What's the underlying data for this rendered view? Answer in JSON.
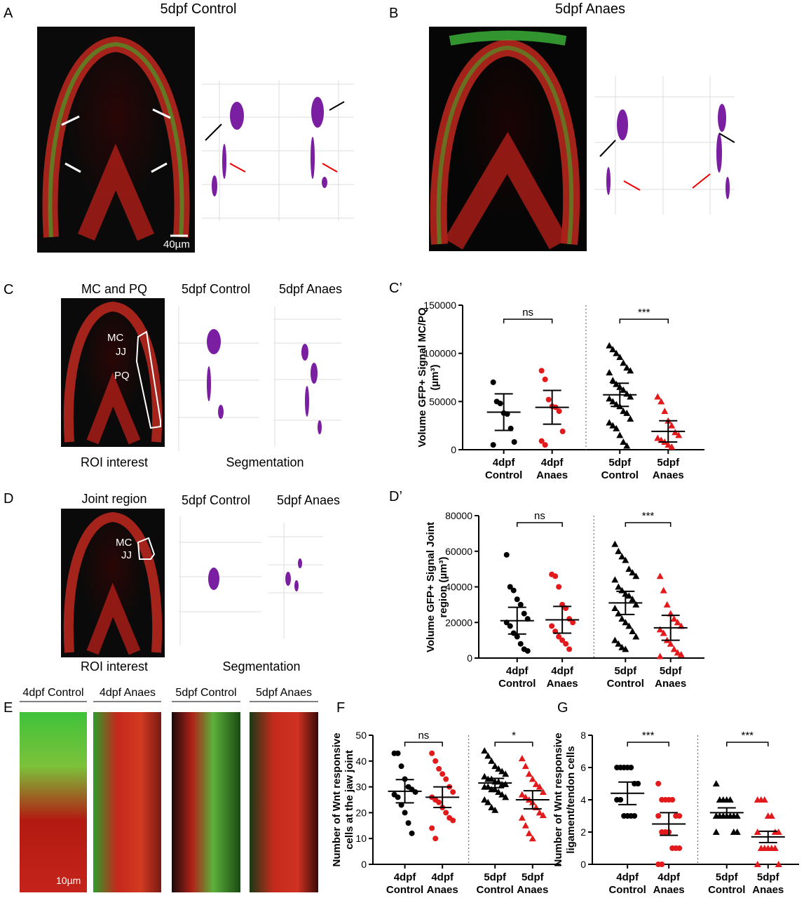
{
  "figure": {
    "A": {
      "label": "A",
      "title": "5dpf Control",
      "scale": "40µm"
    },
    "B": {
      "label": "B",
      "title": "5dpf Anaes"
    },
    "C": {
      "label": "C",
      "roi_title": "MC and PQ",
      "seg1": "5dpf Control",
      "seg2": "5dpf Anaes",
      "roi_caption": "ROI interest",
      "seg_caption": "Segmentation",
      "mc": "MC",
      "jj": "JJ",
      "pq": "PQ"
    },
    "D": {
      "label": "D",
      "roi_title": "Joint region",
      "seg1": "5dpf Control",
      "seg2": "5dpf Anaes",
      "roi_caption": "ROI interest",
      "seg_caption": "Segmentation",
      "mc": "MC",
      "jj": "JJ"
    },
    "E": {
      "label": "E",
      "headers": [
        "4dpf Control",
        "4dpf Anaes",
        "5dpf Control",
        "5dpf Anaes"
      ],
      "scale": "10µm"
    }
  },
  "chart_data": [
    {
      "type": "dotplot",
      "title": "C’",
      "y_label": "Volume GFP+ Signal MC/PQ (µm³)",
      "categories": [
        "4dpf Control",
        "4dpf Anaes",
        "5dpf Control",
        "5dpf Anaes"
      ],
      "colors": [
        "#000000",
        "#e31a1c",
        "#000000",
        "#e31a1c"
      ],
      "markers": [
        "circle",
        "circle",
        "triangle",
        "triangle"
      ],
      "points": [
        [
          70000,
          50000,
          48000,
          38000,
          37000,
          22000,
          8000,
          5000
        ],
        [
          82000,
          73000,
          52000,
          45000,
          44000,
          40000,
          19000,
          9000,
          5000
        ],
        [
          108000,
          104000,
          100000,
          96000,
          90000,
          85000,
          82000,
          80000,
          72000,
          68000,
          65000,
          62000,
          58000,
          55000,
          53000,
          50000,
          47000,
          45000,
          40000,
          38000,
          32000,
          28000,
          25000,
          22000,
          15000,
          8000,
          4000
        ],
        [
          55000,
          50000,
          40000,
          30000,
          25000,
          18000,
          15000,
          12000,
          10000,
          8000,
          5000,
          3000
        ]
      ],
      "means": [
        39000,
        44000,
        57000,
        19000
      ],
      "errors": [
        19000,
        17500,
        12000,
        11000
      ],
      "significance": [
        "ns",
        "***"
      ],
      "ylim": [
        0,
        150000
      ],
      "yticks": [
        0,
        50000,
        100000,
        150000
      ]
    },
    {
      "type": "dotplot",
      "title": "D’",
      "y_label": "Volume GFP+ Signal Joint region (µm³)",
      "categories": [
        "4dpf Control",
        "4dpf Anaes",
        "5dpf Control",
        "5dpf Anaes"
      ],
      "colors": [
        "#000000",
        "#e31a1c",
        "#000000",
        "#e31a1c"
      ],
      "markers": [
        "circle",
        "circle",
        "triangle",
        "triangle"
      ],
      "points": [
        [
          58000,
          40000,
          38000,
          33000,
          30000,
          25000,
          22000,
          20000,
          18000,
          14000,
          12000,
          8000,
          5000,
          4000
        ],
        [
          47000,
          46000,
          40000,
          30000,
          28000,
          22000,
          20000,
          18000,
          15000,
          12000,
          10000,
          8000,
          5000
        ],
        [
          64000,
          60000,
          57000,
          55000,
          50000,
          48000,
          46000,
          44000,
          40000,
          38000,
          36000,
          35000,
          33000,
          30000,
          28000,
          25000,
          22000,
          20000,
          18000,
          15000,
          12000,
          10000,
          8000,
          6000,
          5000
        ],
        [
          46000,
          38000,
          30000,
          25000,
          22000,
          20000,
          18000,
          16000,
          14000,
          10000,
          8000,
          5000,
          3000,
          2000,
          1000
        ]
      ],
      "means": [
        21000,
        21500,
        31000,
        17000
      ],
      "errors": [
        7500,
        7500,
        6500,
        7000
      ],
      "significance": [
        "ns",
        "***"
      ],
      "ylim": [
        0,
        80000
      ],
      "yticks": [
        0,
        20000,
        40000,
        60000,
        80000
      ]
    },
    {
      "type": "dotplot",
      "title": "F",
      "y_label": "Number of Wnt responsive cells at the jaw joint",
      "categories": [
        "4dpf Control",
        "4dpf Anaes",
        "5dpf Control",
        "5dpf Anaes"
      ],
      "colors": [
        "#000000",
        "#e31a1c",
        "#000000",
        "#e31a1c"
      ],
      "markers": [
        "circle",
        "circle",
        "triangle",
        "triangle"
      ],
      "points": [
        [
          43,
          43,
          38,
          33,
          30,
          29,
          28,
          27,
          26,
          23,
          20,
          16,
          12
        ],
        [
          43,
          40,
          37,
          35,
          33,
          30,
          28,
          26,
          25,
          24,
          22,
          20,
          18,
          17,
          14,
          10
        ],
        [
          44,
          42,
          40,
          38,
          37,
          36,
          35,
          34,
          33,
          33,
          32,
          32,
          31,
          31,
          30,
          30,
          29,
          29,
          28,
          27,
          26,
          25,
          24,
          22,
          21
        ],
        [
          41,
          38,
          35,
          33,
          31,
          30,
          28,
          27,
          26,
          25,
          24,
          22,
          20,
          19,
          18,
          15,
          12,
          10
        ]
      ],
      "means": [
        28.3,
        26,
        31.5,
        25
      ],
      "errors": [
        4.5,
        4,
        1.8,
        3.5
      ],
      "significance": [
        "ns",
        "*"
      ],
      "ylim": [
        0,
        50
      ],
      "yticks": [
        0,
        10,
        20,
        30,
        40,
        50
      ]
    },
    {
      "type": "dotplot",
      "title": "G",
      "y_label": "Number of Wnt responsive ligament/tendon cells",
      "categories": [
        "4dpf Control",
        "4dpf Anaes",
        "5dpf Control",
        "5dpf Anaes"
      ],
      "colors": [
        "#000000",
        "#e31a1c",
        "#000000",
        "#e31a1c"
      ],
      "markers": [
        "circle",
        "circle",
        "triangle",
        "triangle"
      ],
      "points": [
        [
          6,
          6,
          6,
          6,
          6,
          5,
          5,
          4,
          4,
          3,
          3,
          3,
          3
        ],
        [
          5,
          4,
          4,
          4,
          4,
          3,
          3,
          3,
          2,
          2,
          2,
          1,
          1,
          1,
          0,
          0
        ],
        [
          5,
          4,
          4,
          4,
          4,
          3,
          3,
          3,
          3,
          3,
          3,
          3,
          2,
          2,
          2
        ],
        [
          4,
          4,
          4,
          3,
          3,
          2,
          2,
          2,
          1,
          1,
          1,
          1,
          1,
          0,
          0
        ]
      ],
      "means": [
        4.4,
        2.5,
        3.2,
        1.7
      ],
      "errors": [
        0.7,
        0.7,
        0.3,
        0.35
      ],
      "significance": [
        "***",
        "***"
      ],
      "ylim": [
        0,
        8
      ],
      "yticks": [
        0,
        2,
        4,
        6,
        8
      ]
    }
  ]
}
